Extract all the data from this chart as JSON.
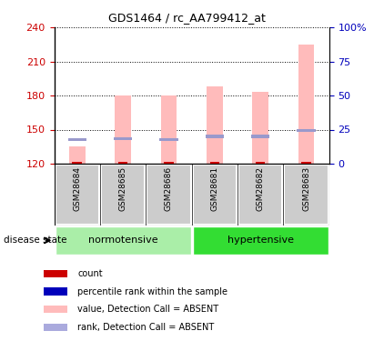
{
  "title": "GDS1464 / rc_AA799412_at",
  "samples": [
    "GSM28684",
    "GSM28685",
    "GSM28686",
    "GSM28681",
    "GSM28682",
    "GSM28683"
  ],
  "group_labels": [
    "normotensive",
    "hypertensive"
  ],
  "normotensive_color": "#AAEEA8",
  "hypertensive_color": "#33DD33",
  "ylim_left": [
    120,
    240
  ],
  "ylim_right": [
    0,
    100
  ],
  "yticks_left": [
    120,
    150,
    180,
    210,
    240
  ],
  "yticks_right": [
    0,
    25,
    50,
    75,
    100
  ],
  "left_axis_color": "#CC0000",
  "right_axis_color": "#0000BB",
  "bar_bottom": 120,
  "value_heights": [
    135,
    180,
    180,
    188,
    183,
    225
  ],
  "rank_heights": [
    141,
    142,
    141,
    144,
    144,
    149
  ],
  "pink_color": "#FFBBBB",
  "blue_color": "#9999CC",
  "red_color": "#CC0000",
  "dark_blue_color": "#0000BB",
  "bar_width": 0.35,
  "legend_items": [
    {
      "label": "count",
      "color": "#CC0000"
    },
    {
      "label": "percentile rank within the sample",
      "color": "#0000BB"
    },
    {
      "label": "value, Detection Call = ABSENT",
      "color": "#FFBBBB"
    },
    {
      "label": "rank, Detection Call = ABSENT",
      "color": "#AAAADD"
    }
  ],
  "disease_state_label": "disease state",
  "sample_bg_color": "#CCCCCC",
  "plot_bg_color": "#FFFFFF"
}
